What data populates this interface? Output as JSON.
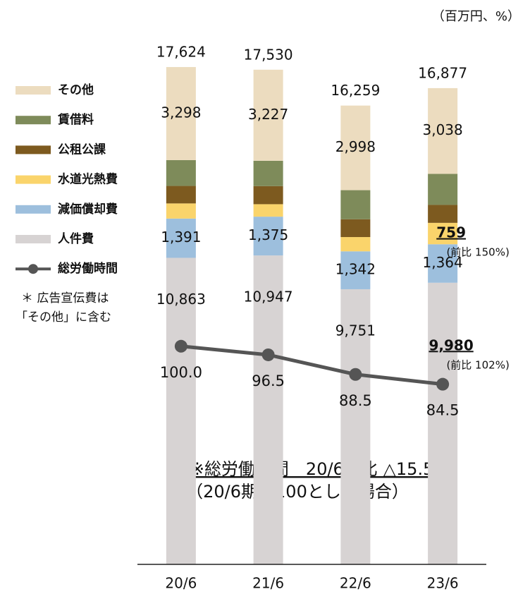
{
  "chart_data": {
    "type": "stacked-bar-line",
    "unit": "（百万円、%）",
    "categories": [
      "20/6",
      "21/6",
      "22/6",
      "23/6"
    ],
    "ylim": [
      0,
      18500
    ],
    "y2lim": [
      11,
      224
    ],
    "series": [
      {
        "name": "人件費",
        "color": "#d7d3d3",
        "values": [
          10863,
          10947,
          9751,
          9980
        ],
        "value_labels": [
          "10,863",
          "10,947",
          "9,751",
          "9,980"
        ],
        "notes": [
          null,
          null,
          null,
          "(前比 102%)"
        ]
      },
      {
        "name": "減価償却費",
        "color": "#9dbfdd",
        "values": [
          1391,
          1375,
          1342,
          1364
        ],
        "value_labels": [
          "1,391",
          "1,375",
          "1,342",
          "1,364"
        ]
      },
      {
        "name": "水道光熱費",
        "color": "#fad46b",
        "values": [
          537,
          442,
          506,
          759
        ],
        "notes": [
          null,
          null,
          null,
          "(前比 150%)"
        ]
      },
      {
        "name": "公租公課",
        "color": "#7d5a1f",
        "values": [
          620,
          640,
          632,
          636
        ]
      },
      {
        "name": "賃借料",
        "color": "#7e8b5a",
        "values": [
          915,
          899,
          1030,
          1100
        ]
      },
      {
        "name": "その他",
        "color": "#ecdcbf",
        "values": [
          3298,
          3227,
          2998,
          3038
        ],
        "value_labels": [
          "3,298",
          "3,227",
          "2,998",
          "3,038"
        ]
      },
      {
        "name": "総労働時間",
        "type": "line",
        "axis": "y2",
        "color": "#555555",
        "values": [
          100,
          96.5,
          88.5,
          84.5
        ],
        "value_labels": [
          "100.0",
          "96.5",
          "88.5",
          "84.5"
        ]
      }
    ],
    "totals": {
      "values": [
        17624,
        17530,
        16259,
        16877
      ],
      "value_labels": [
        "17,624",
        "17,530",
        "16,259",
        "16,877"
      ]
    },
    "footnote": [
      "＊ 広告宣伝費は",
      "「その他」に含む"
    ],
    "annotation": [
      "※総労働時間　20/6期比 △15.5%",
      "（20/6期を100とした場合）"
    ]
  }
}
